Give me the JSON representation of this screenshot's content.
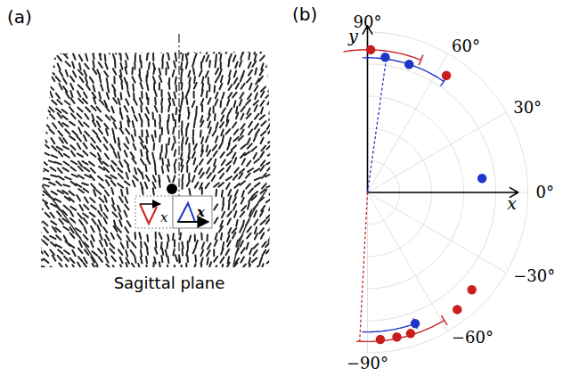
{
  "panel_labels": [
    "(a)",
    "(b)"
  ],
  "diagram": {
    "plane_label": "Sagittal plane",
    "frames": [
      {
        "color": "#d42020",
        "axis_label": "x"
      },
      {
        "color": "#1f35c8",
        "axis_label": "x"
      }
    ]
  },
  "chart_data": {
    "type": "polar_scatter",
    "x_label": "x",
    "y_label": "y",
    "rlim": [
      0,
      1
    ],
    "rticks": [
      0.2,
      0.4,
      0.6,
      0.8,
      1
    ],
    "grid": true,
    "angle_ticks": [
      {
        "value": 90,
        "label": "90°"
      },
      {
        "value": 60,
        "label": "60°"
      },
      {
        "value": 30,
        "label": "30°"
      },
      {
        "value": 0,
        "label": "0°"
      },
      {
        "value": -30,
        "label": "−30°"
      },
      {
        "value": -60,
        "label": "−60°"
      },
      {
        "value": -90,
        "label": "−90°"
      }
    ],
    "series": [
      {
        "color": "#c81e1e",
        "marker": "circle",
        "angle": [
          88.7,
          56,
          -85,
          -78.5,
          -73,
          -52.5,
          -43
        ],
        "r": [
          0.89,
          0.88,
          0.92,
          0.92,
          0.92,
          0.92,
          0.89
        ]
      },
      {
        "color": "#1f35c8",
        "marker": "circle",
        "angle": [
          82.5,
          72,
          7,
          -70
        ],
        "r": [
          0.85,
          0.84,
          0.72,
          0.87
        ]
      }
    ],
    "arcs": [
      {
        "color": "#c81e1e",
        "start": 99.5,
        "end": 68,
        "r": 0.89
      },
      {
        "color": "#c81e1e",
        "start": -94,
        "end": -59,
        "r": 0.93
      },
      {
        "color": "#1f35c8",
        "start": 92,
        "end": 55.5,
        "r": 0.84
      },
      {
        "color": "#1f35c8",
        "start": -92,
        "end": -70,
        "r": 0.87
      }
    ],
    "mean_lines": [
      {
        "color": "#c81e1e",
        "angle": -93,
        "r": 0.93,
        "line_style": "dashed"
      },
      {
        "color": "#1f35c8",
        "angle": 82,
        "r": 0.85,
        "line_style": "dashed"
      }
    ]
  }
}
